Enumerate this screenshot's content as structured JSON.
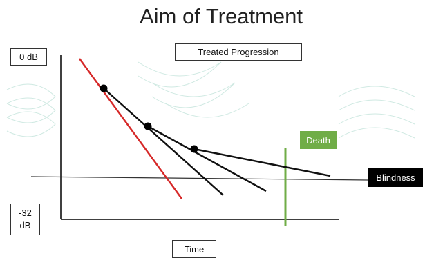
{
  "title": "Aim of Treatment",
  "legend_label": "Treated Progression",
  "y_axis": {
    "top_label": "0 dB",
    "bottom_label": "-32 dB"
  },
  "x_axis": {
    "label": "Time"
  },
  "markers": {
    "death": "Death",
    "blindness": "Blindness"
  }
}
